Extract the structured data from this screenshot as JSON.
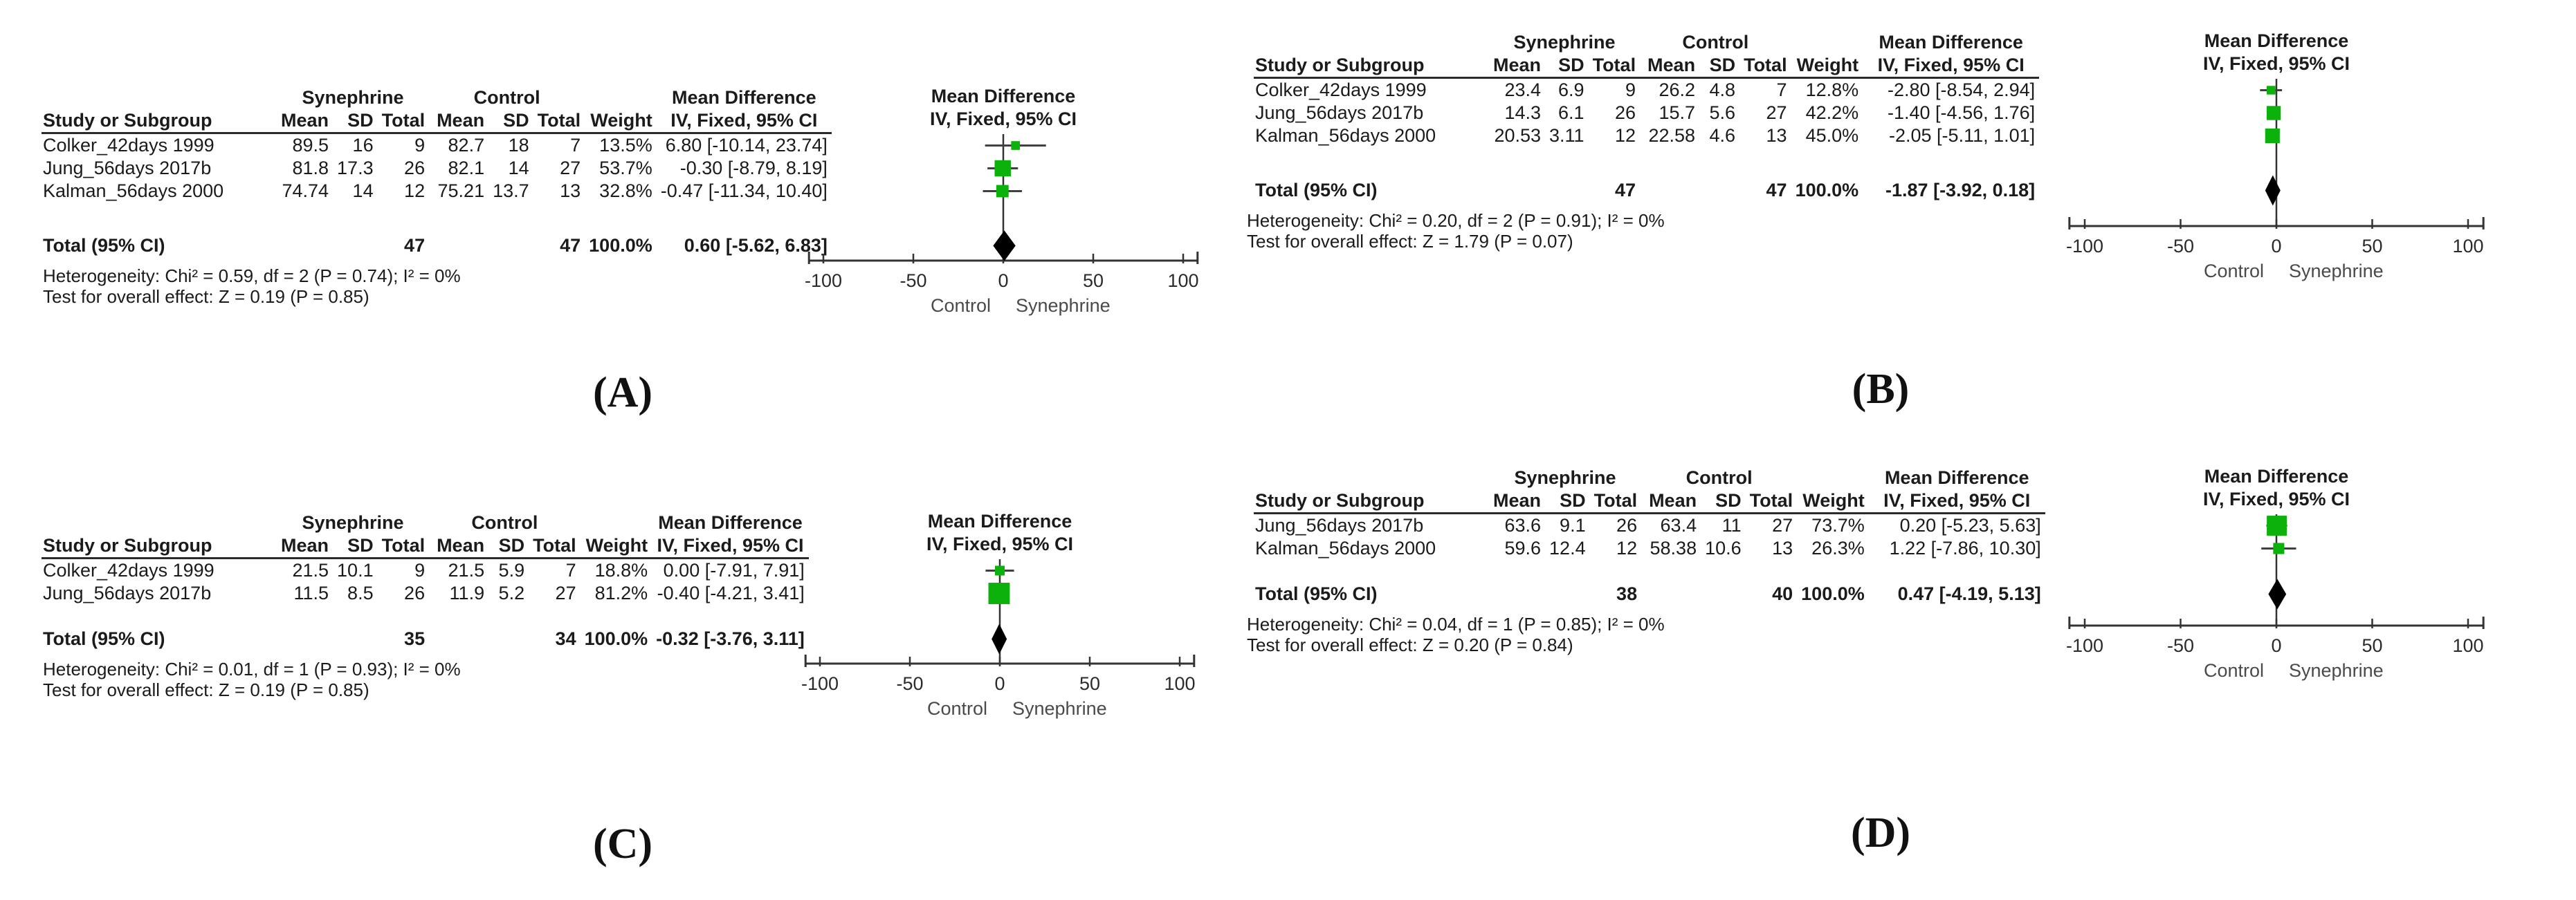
{
  "table_headers": {
    "study": "Study or Subgroup",
    "mean": "Mean",
    "sd": "SD",
    "total": "Total",
    "weight": "Weight",
    "md_group": "Mean Difference",
    "ci_method": "IV, Fixed, 95% CI"
  },
  "colors": {
    "marker_green": "#0cb10c",
    "diamond_black": "#000000",
    "ci_line": "#404040",
    "axis_line": "#333333",
    "text": "#1b1b1b"
  },
  "chart_data": [
    {
      "type": "forest",
      "panel_label": "(A)",
      "groups": {
        "experimental": "Synephrine",
        "control": "Control"
      },
      "studies": [
        {
          "study": "Colker_42days 1999",
          "exp_mean": "89.5",
          "exp_sd": "16",
          "exp_total": "9",
          "ctl_mean": "82.7",
          "ctl_sd": "18",
          "ctl_total": "7",
          "weight": "13.5%",
          "ci_text": "6.80 [-10.14, 23.74]",
          "md": 6.8,
          "ci_low": -10.14,
          "ci_high": 23.74,
          "weight_pct": 13.5
        },
        {
          "study": "Jung_56days 2017b",
          "exp_mean": "81.8",
          "exp_sd": "17.3",
          "exp_total": "26",
          "ctl_mean": "82.1",
          "ctl_sd": "14",
          "ctl_total": "27",
          "weight": "53.7%",
          "ci_text": "-0.30 [-8.79, 8.19]",
          "md": -0.3,
          "ci_low": -8.79,
          "ci_high": 8.19,
          "weight_pct": 53.7
        },
        {
          "study": "Kalman_56days 2000",
          "exp_mean": "74.74",
          "exp_sd": "14",
          "exp_total": "12",
          "ctl_mean": "75.21",
          "ctl_sd": "13.7",
          "ctl_total": "13",
          "weight": "32.8%",
          "ci_text": "-0.47 [-11.34, 10.40]",
          "md": -0.47,
          "ci_low": -11.34,
          "ci_high": 10.4,
          "weight_pct": 32.8
        }
      ],
      "total": {
        "label": "Total (95% CI)",
        "exp_total": "47",
        "ctl_total": "47",
        "weight": "100.0%",
        "ci_text": "0.60 [-5.62, 6.83]",
        "md": 0.6,
        "ci_low": -5.62,
        "ci_high": 6.83
      },
      "heterogeneity": "Heterogeneity: Chi² = 0.59, df = 2 (P = 0.74); I² = 0%",
      "overall_effect": "Test for overall effect: Z = 0.19 (P = 0.85)",
      "axis": {
        "min": -100,
        "max": 100,
        "ticks": [
          -100,
          -50,
          0,
          50,
          100
        ]
      },
      "footer_left": "Control",
      "footer_right": "Synephrine"
    },
    {
      "type": "forest",
      "panel_label": "(B)",
      "groups": {
        "experimental": "Synephrine",
        "control": "Control"
      },
      "studies": [
        {
          "study": "Colker_42days 1999",
          "exp_mean": "23.4",
          "exp_sd": "6.9",
          "exp_total": "9",
          "ctl_mean": "26.2",
          "ctl_sd": "4.8",
          "ctl_total": "7",
          "weight": "12.8%",
          "ci_text": "-2.80 [-8.54, 2.94]",
          "md": -2.8,
          "ci_low": -8.54,
          "ci_high": 2.94,
          "weight_pct": 12.8
        },
        {
          "study": "Jung_56days 2017b",
          "exp_mean": "14.3",
          "exp_sd": "6.1",
          "exp_total": "26",
          "ctl_mean": "15.7",
          "ctl_sd": "5.6",
          "ctl_total": "27",
          "weight": "42.2%",
          "ci_text": "-1.40 [-4.56, 1.76]",
          "md": -1.4,
          "ci_low": -4.56,
          "ci_high": 1.76,
          "weight_pct": 42.2
        },
        {
          "study": "Kalman_56days 2000",
          "exp_mean": "20.53",
          "exp_sd": "3.11",
          "exp_total": "12",
          "ctl_mean": "22.58",
          "ctl_sd": "4.6",
          "ctl_total": "13",
          "weight": "45.0%",
          "ci_text": "-2.05 [-5.11, 1.01]",
          "md": -2.05,
          "ci_low": -5.11,
          "ci_high": 1.01,
          "weight_pct": 45.0
        }
      ],
      "total": {
        "label": "Total (95% CI)",
        "exp_total": "47",
        "ctl_total": "47",
        "weight": "100.0%",
        "ci_text": "-1.87 [-3.92, 0.18]",
        "md": -1.87,
        "ci_low": -3.92,
        "ci_high": 0.18
      },
      "heterogeneity": "Heterogeneity: Chi² = 0.20, df = 2 (P = 0.91); I² = 0%",
      "overall_effect": "Test for overall effect: Z = 1.79 (P = 0.07)",
      "axis": {
        "min": -100,
        "max": 100,
        "ticks": [
          -100,
          -50,
          0,
          50,
          100
        ]
      },
      "footer_left": "Control",
      "footer_right": "Synephrine"
    },
    {
      "type": "forest",
      "panel_label": "(C)",
      "groups": {
        "experimental": "Synephrine",
        "control": "Control"
      },
      "studies": [
        {
          "study": "Colker_42days 1999",
          "exp_mean": "21.5",
          "exp_sd": "10.1",
          "exp_total": "9",
          "ctl_mean": "21.5",
          "ctl_sd": "5.9",
          "ctl_total": "7",
          "weight": "18.8%",
          "ci_text": "0.00 [-7.91, 7.91]",
          "md": 0.0,
          "ci_low": -7.91,
          "ci_high": 7.91,
          "weight_pct": 18.8
        },
        {
          "study": "Jung_56days 2017b",
          "exp_mean": "11.5",
          "exp_sd": "8.5",
          "exp_total": "26",
          "ctl_mean": "11.9",
          "ctl_sd": "5.2",
          "ctl_total": "27",
          "weight": "81.2%",
          "ci_text": "-0.40 [-4.21, 3.41]",
          "md": -0.4,
          "ci_low": -4.21,
          "ci_high": 3.41,
          "weight_pct": 81.2
        }
      ],
      "total": {
        "label": "Total (95% CI)",
        "exp_total": "35",
        "ctl_total": "34",
        "weight": "100.0%",
        "ci_text": "-0.32 [-3.76, 3.11]",
        "md": -0.32,
        "ci_low": -3.76,
        "ci_high": 3.11
      },
      "heterogeneity": "Heterogeneity: Chi² = 0.01, df = 1 (P = 0.93); I² = 0%",
      "overall_effect": "Test for overall effect: Z = 0.19 (P = 0.85)",
      "axis": {
        "min": -100,
        "max": 100,
        "ticks": [
          -100,
          -50,
          0,
          50,
          100
        ]
      },
      "footer_left": "Control",
      "footer_right": "Synephrine"
    },
    {
      "type": "forest",
      "panel_label": "(D)",
      "groups": {
        "experimental": "Synephrine",
        "control": "Control"
      },
      "studies": [
        {
          "study": "Jung_56days 2017b",
          "exp_mean": "63.6",
          "exp_sd": "9.1",
          "exp_total": "26",
          "ctl_mean": "63.4",
          "ctl_sd": "11",
          "ctl_total": "27",
          "weight": "73.7%",
          "ci_text": "0.20 [-5.23, 5.63]",
          "md": 0.2,
          "ci_low": -5.23,
          "ci_high": 5.63,
          "weight_pct": 73.7
        },
        {
          "study": "Kalman_56days 2000",
          "exp_mean": "59.6",
          "exp_sd": "12.4",
          "exp_total": "12",
          "ctl_mean": "58.38",
          "ctl_sd": "10.6",
          "ctl_total": "13",
          "weight": "26.3%",
          "ci_text": "1.22 [-7.86, 10.30]",
          "md": 1.22,
          "ci_low": -7.86,
          "ci_high": 10.3,
          "weight_pct": 26.3
        }
      ],
      "total": {
        "label": "Total (95% CI)",
        "exp_total": "38",
        "ctl_total": "40",
        "weight": "100.0%",
        "ci_text": "0.47 [-4.19, 5.13]",
        "md": 0.47,
        "ci_low": -4.19,
        "ci_high": 5.13
      },
      "heterogeneity": "Heterogeneity: Chi² = 0.04, df = 1 (P = 0.85); I² = 0%",
      "overall_effect": "Test for overall effect: Z = 0.20 (P = 0.84)",
      "axis": {
        "min": -100,
        "max": 100,
        "ticks": [
          -100,
          -50,
          0,
          50,
          100
        ]
      },
      "footer_left": "Control",
      "footer_right": "Synephrine"
    }
  ]
}
